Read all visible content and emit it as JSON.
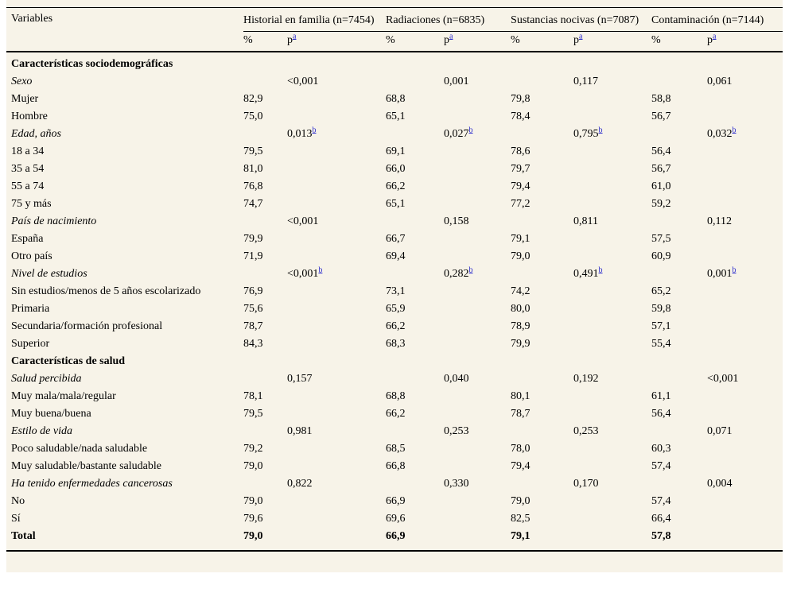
{
  "colors": {
    "panel_background": "#f7f3e8",
    "text": "#000000",
    "footnote_link": "#2929cc"
  },
  "header": {
    "variables_label": "Variables",
    "groups": [
      "Historial en familia (n=7454)",
      "Radiaciones (n=6835)",
      "Sustancias nocivas (n=7087)",
      "Contaminación (n=7144)"
    ],
    "percent_label": "%",
    "p_label": "p",
    "footnote_marker_a": "a",
    "footnote_marker_b": "b"
  },
  "rows": [
    {
      "label": "Características sociodemográficas",
      "style": "section",
      "v": [
        "",
        "",
        "",
        "",
        "",
        "",
        "",
        ""
      ],
      "sup": ""
    },
    {
      "label": "Sexo",
      "style": "italic",
      "v": [
        "",
        "<0,001",
        "",
        "0,001",
        "",
        "0,117",
        "",
        "0,061"
      ],
      "sup": ""
    },
    {
      "label": "Mujer",
      "style": "normal",
      "v": [
        "82,9",
        "",
        "68,8",
        "",
        "79,8",
        "",
        "58,8",
        ""
      ],
      "sup": ""
    },
    {
      "label": "Hombre",
      "style": "normal",
      "v": [
        "75,0",
        "",
        "65,1",
        "",
        "78,4",
        "",
        "56,7",
        ""
      ],
      "sup": ""
    },
    {
      "label": "Edad, años",
      "style": "italic",
      "v": [
        "",
        "0,013",
        "",
        "0,027",
        "",
        "0,795",
        "",
        "0,032"
      ],
      "sup": "b"
    },
    {
      "label": "18 a 34",
      "style": "normal",
      "v": [
        "79,5",
        "",
        "69,1",
        "",
        "78,6",
        "",
        "56,4",
        ""
      ],
      "sup": ""
    },
    {
      "label": "35 a 54",
      "style": "normal",
      "v": [
        "81,0",
        "",
        "66,0",
        "",
        "79,7",
        "",
        "56,7",
        ""
      ],
      "sup": ""
    },
    {
      "label": "55 a 74",
      "style": "normal",
      "v": [
        "76,8",
        "",
        "66,2",
        "",
        "79,4",
        "",
        "61,0",
        ""
      ],
      "sup": ""
    },
    {
      "label": "75 y más",
      "style": "normal",
      "v": [
        "74,7",
        "",
        "65,1",
        "",
        "77,2",
        "",
        "59,2",
        ""
      ],
      "sup": ""
    },
    {
      "label": "País de nacimiento",
      "style": "italic",
      "v": [
        "",
        "<0,001",
        "",
        "0,158",
        "",
        "0,811",
        "",
        "0,112"
      ],
      "sup": ""
    },
    {
      "label": "España",
      "style": "normal",
      "v": [
        "79,9",
        "",
        "66,7",
        "",
        "79,1",
        "",
        "57,5",
        ""
      ],
      "sup": ""
    },
    {
      "label": "Otro país",
      "style": "normal",
      "v": [
        "71,9",
        "",
        "69,4",
        "",
        "79,0",
        "",
        "60,9",
        ""
      ],
      "sup": ""
    },
    {
      "label": "Nivel de estudios",
      "style": "italic",
      "v": [
        "",
        "<0,001",
        "",
        "0,282",
        "",
        "0,491",
        "",
        "0,001"
      ],
      "sup": "b"
    },
    {
      "label": "Sin estudios/menos de 5 años escolarizado",
      "style": "normal",
      "v": [
        "76,9",
        "",
        "73,1",
        "",
        "74,2",
        "",
        "65,2",
        ""
      ],
      "sup": ""
    },
    {
      "label": "Primaria",
      "style": "normal",
      "v": [
        "75,6",
        "",
        "65,9",
        "",
        "80,0",
        "",
        "59,8",
        ""
      ],
      "sup": ""
    },
    {
      "label": "Secundaria/formación profesional",
      "style": "normal",
      "v": [
        "78,7",
        "",
        "66,2",
        "",
        "78,9",
        "",
        "57,1",
        ""
      ],
      "sup": ""
    },
    {
      "label": "Superior",
      "style": "normal",
      "v": [
        "84,3",
        "",
        "68,3",
        "",
        "79,9",
        "",
        "55,4",
        ""
      ],
      "sup": ""
    },
    {
      "label": "Características de salud",
      "style": "section",
      "v": [
        "",
        "",
        "",
        "",
        "",
        "",
        "",
        ""
      ],
      "sup": ""
    },
    {
      "label": "Salud percibida",
      "style": "italic",
      "v": [
        "",
        "0,157",
        "",
        "0,040",
        "",
        "0,192",
        "",
        "<0,001"
      ],
      "sup": ""
    },
    {
      "label": "Muy mala/mala/regular",
      "style": "normal",
      "v": [
        "78,1",
        "",
        "68,8",
        "",
        "80,1",
        "",
        "61,1",
        ""
      ],
      "sup": ""
    },
    {
      "label": "Muy buena/buena",
      "style": "normal",
      "v": [
        "79,5",
        "",
        "66,2",
        "",
        "78,7",
        "",
        "56,4",
        ""
      ],
      "sup": ""
    },
    {
      "label": "Estilo de vida",
      "style": "italic",
      "v": [
        "",
        "0,981",
        "",
        "0,253",
        "",
        "0,253",
        "",
        "0,071"
      ],
      "sup": ""
    },
    {
      "label": "Poco saludable/nada saludable",
      "style": "normal",
      "v": [
        "79,2",
        "",
        "68,5",
        "",
        "78,0",
        "",
        "60,3",
        ""
      ],
      "sup": ""
    },
    {
      "label": "Muy saludable/bastante saludable",
      "style": "normal",
      "v": [
        "79,0",
        "",
        "66,8",
        "",
        "79,4",
        "",
        "57,4",
        ""
      ],
      "sup": ""
    },
    {
      "label": "Ha tenido enfermedades cancerosas",
      "style": "italic",
      "v": [
        "",
        "0,822",
        "",
        "0,330",
        "",
        "0,170",
        "",
        "0,004"
      ],
      "sup": ""
    },
    {
      "label": "No",
      "style": "normal",
      "v": [
        "79,0",
        "",
        "66,9",
        "",
        "79,0",
        "",
        "57,4",
        ""
      ],
      "sup": ""
    },
    {
      "label": "Sí",
      "style": "normal",
      "v": [
        "79,6",
        "",
        "69,6",
        "",
        "82,5",
        "",
        "66,4",
        ""
      ],
      "sup": ""
    },
    {
      "label": "Total",
      "style": "bold",
      "v": [
        "79,0",
        "",
        "66,9",
        "",
        "79,1",
        "",
        "57,8",
        ""
      ],
      "sup": ""
    }
  ]
}
